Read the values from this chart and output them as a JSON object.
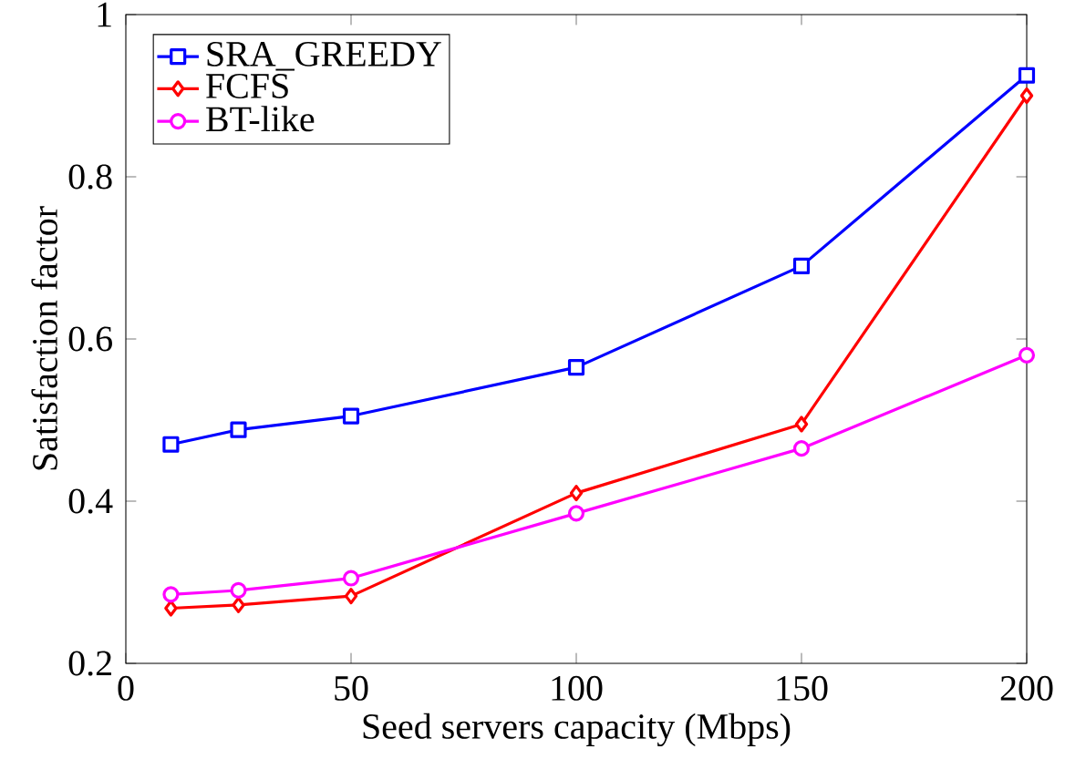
{
  "chart_data": {
    "type": "line",
    "xlabel": "Seed servers capacity (Mbps)",
    "ylabel": "Satisfaction factor",
    "x": [
      10,
      25,
      50,
      100,
      150,
      200
    ],
    "series": [
      {
        "name": "SRA_GREEDY",
        "color": "#0000ff",
        "marker": "square",
        "values": [
          0.47,
          0.488,
          0.505,
          0.565,
          0.69,
          0.925
        ]
      },
      {
        "name": "FCFS",
        "color": "#ff0000",
        "marker": "diamond",
        "values": [
          0.268,
          0.272,
          0.283,
          0.41,
          0.495,
          0.9
        ]
      },
      {
        "name": "BT-like",
        "color": "#ff00ff",
        "marker": "circle",
        "values": [
          0.285,
          0.29,
          0.305,
          0.385,
          0.465,
          0.58
        ]
      }
    ],
    "xlim": [
      0,
      200
    ],
    "ylim": [
      0.2,
      1
    ],
    "xticks": [
      0,
      50,
      100,
      150,
      200
    ],
    "yticks": [
      0.2,
      0.4,
      0.6,
      0.8,
      1
    ],
    "legend": "top left",
    "line_style": "solid",
    "grid": false
  }
}
